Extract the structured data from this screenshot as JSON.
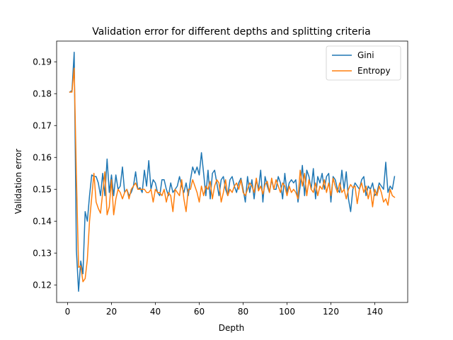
{
  "chart_data": {
    "type": "line",
    "title": "Validation error for different depths and splitting criteria",
    "xlabel": "Depth",
    "ylabel": "Validation error",
    "xlim": [
      -5,
      155
    ],
    "ylim": [
      0.1145,
      0.1965
    ],
    "xticks": [
      0,
      20,
      40,
      60,
      80,
      100,
      120,
      140
    ],
    "yticks": [
      0.12,
      0.13,
      0.14,
      0.15,
      0.16,
      0.17,
      0.18,
      0.19
    ],
    "xtick_labels": [
      "0",
      "20",
      "40",
      "60",
      "80",
      "100",
      "120",
      "140"
    ],
    "ytick_labels": [
      "0.12",
      "0.13",
      "0.14",
      "0.15",
      "0.16",
      "0.17",
      "0.18",
      "0.19"
    ],
    "grid": false,
    "legend_position": "top-right",
    "series": [
      {
        "name": "Gini",
        "color": "#1f77b4",
        "x": [
          1,
          2,
          3,
          4,
          5,
          6,
          7,
          8,
          9,
          10,
          11,
          12,
          13,
          14,
          15,
          16,
          17,
          18,
          19,
          20,
          21,
          22,
          23,
          24,
          25,
          26,
          27,
          28,
          29,
          30,
          31,
          32,
          33,
          34,
          35,
          36,
          37,
          38,
          39,
          40,
          41,
          42,
          43,
          44,
          45,
          46,
          47,
          48,
          49,
          50,
          51,
          52,
          53,
          54,
          55,
          56,
          57,
          58,
          59,
          60,
          61,
          62,
          63,
          64,
          65,
          66,
          67,
          68,
          69,
          70,
          71,
          72,
          73,
          74,
          75,
          76,
          77,
          78,
          79,
          80,
          81,
          82,
          83,
          84,
          85,
          86,
          87,
          88,
          89,
          90,
          91,
          92,
          93,
          94,
          95,
          96,
          97,
          98,
          99,
          100,
          101,
          102,
          103,
          104,
          105,
          106,
          107,
          108,
          109,
          110,
          111,
          112,
          113,
          114,
          115,
          116,
          117,
          118,
          119,
          120,
          121,
          122,
          123,
          124,
          125,
          126,
          127,
          128,
          129,
          130,
          131,
          132,
          133,
          134,
          135,
          136,
          137,
          138,
          139,
          140,
          141,
          142,
          143,
          144,
          145,
          146,
          147,
          148,
          149
        ],
        "values": [
          0.1805,
          0.181,
          0.193,
          0.131,
          0.118,
          0.1275,
          0.1235,
          0.143,
          0.14,
          0.148,
          0.1545,
          0.154,
          0.154,
          0.152,
          0.148,
          0.155,
          0.148,
          0.1595,
          0.149,
          0.1545,
          0.148,
          0.1545,
          0.15,
          0.151,
          0.157,
          0.149,
          0.15,
          0.148,
          0.149,
          0.151,
          0.1555,
          0.15,
          0.1505,
          0.149,
          0.156,
          0.151,
          0.159,
          0.15,
          0.153,
          0.152,
          0.149,
          0.148,
          0.153,
          0.153,
          0.15,
          0.148,
          0.152,
          0.149,
          0.15,
          0.151,
          0.154,
          0.151,
          0.149,
          0.152,
          0.148,
          0.153,
          0.157,
          0.155,
          0.157,
          0.1545,
          0.1615,
          0.155,
          0.148,
          0.156,
          0.147,
          0.155,
          0.156,
          0.152,
          0.148,
          0.153,
          0.154,
          0.15,
          0.148,
          0.153,
          0.154,
          0.151,
          0.149,
          0.152,
          0.1535,
          0.15,
          0.146,
          0.154,
          0.149,
          0.153,
          0.147,
          0.153,
          0.15,
          0.156,
          0.146,
          0.154,
          0.151,
          0.149,
          0.153,
          0.15,
          0.15,
          0.154,
          0.152,
          0.147,
          0.155,
          0.149,
          0.152,
          0.153,
          0.152,
          0.153,
          0.146,
          0.151,
          0.1575,
          0.148,
          0.156,
          0.154,
          0.15,
          0.1565,
          0.147,
          0.154,
          0.152,
          0.155,
          0.15,
          0.154,
          0.155,
          0.146,
          0.154,
          0.153,
          0.15,
          0.149,
          0.156,
          0.15,
          0.1555,
          0.147,
          0.143,
          0.15,
          0.152,
          0.151,
          0.15,
          0.153,
          0.154,
          0.148,
          0.151,
          0.15,
          0.152,
          0.148,
          0.149,
          0.152,
          0.151,
          0.15,
          0.1585,
          0.149,
          0.151,
          0.15,
          0.154
        ]
      },
      {
        "name": "Entropy",
        "color": "#ff7f0e",
        "x": [
          1,
          2,
          3,
          4,
          5,
          6,
          7,
          8,
          9,
          10,
          11,
          12,
          13,
          14,
          15,
          16,
          17,
          18,
          19,
          20,
          21,
          22,
          23,
          24,
          25,
          26,
          27,
          28,
          29,
          30,
          31,
          32,
          33,
          34,
          35,
          36,
          37,
          38,
          39,
          40,
          41,
          42,
          43,
          44,
          45,
          46,
          47,
          48,
          49,
          50,
          51,
          52,
          53,
          54,
          55,
          56,
          57,
          58,
          59,
          60,
          61,
          62,
          63,
          64,
          65,
          66,
          67,
          68,
          69,
          70,
          71,
          72,
          73,
          74,
          75,
          76,
          77,
          78,
          79,
          80,
          81,
          82,
          83,
          84,
          85,
          86,
          87,
          88,
          89,
          90,
          91,
          92,
          93,
          94,
          95,
          96,
          97,
          98,
          99,
          100,
          101,
          102,
          103,
          104,
          105,
          106,
          107,
          108,
          109,
          110,
          111,
          112,
          113,
          114,
          115,
          116,
          117,
          118,
          119,
          120,
          121,
          122,
          123,
          124,
          125,
          126,
          127,
          128,
          129,
          130,
          131,
          132,
          133,
          134,
          135,
          136,
          137,
          138,
          139,
          140,
          141,
          142,
          143,
          144,
          145,
          146,
          147,
          148,
          149
        ],
        "values": [
          0.1805,
          0.1805,
          0.188,
          0.1545,
          0.1255,
          0.126,
          0.121,
          0.122,
          0.128,
          0.14,
          0.1475,
          0.155,
          0.146,
          0.144,
          0.1425,
          0.149,
          0.1555,
          0.142,
          0.1445,
          0.153,
          0.142,
          0.147,
          0.15,
          0.149,
          0.147,
          0.149,
          0.15,
          0.147,
          0.15,
          0.151,
          0.152,
          0.15,
          0.15,
          0.15,
          0.15,
          0.149,
          0.149,
          0.15,
          0.146,
          0.15,
          0.149,
          0.149,
          0.148,
          0.15,
          0.146,
          0.149,
          0.148,
          0.143,
          0.15,
          0.149,
          0.148,
          0.153,
          0.147,
          0.143,
          0.15,
          0.15,
          0.153,
          0.151,
          0.149,
          0.146,
          0.151,
          0.148,
          0.151,
          0.15,
          0.1525,
          0.147,
          0.151,
          0.153,
          0.152,
          0.146,
          0.149,
          0.153,
          0.148,
          0.15,
          0.149,
          0.151,
          0.152,
          0.15,
          0.153,
          0.149,
          0.148,
          0.15,
          0.152,
          0.151,
          0.149,
          0.1535,
          0.1495,
          0.151,
          0.1485,
          0.1515,
          0.1525,
          0.149,
          0.1535,
          0.15,
          0.153,
          0.151,
          0.149,
          0.152,
          0.151,
          0.148,
          0.151,
          0.149,
          0.15,
          0.149,
          0.147,
          0.156,
          0.151,
          0.155,
          0.148,
          0.153,
          0.15,
          0.149,
          0.152,
          0.148,
          0.151,
          0.15,
          0.153,
          0.149,
          0.152,
          0.148,
          0.1535,
          0.151,
          0.149,
          0.152,
          0.149,
          0.15,
          0.147,
          0.15,
          0.1515,
          0.1505,
          0.151,
          0.1455,
          0.15,
          0.152,
          0.149,
          0.151,
          0.147,
          0.15,
          0.1445,
          0.15,
          0.148,
          0.151,
          0.149,
          0.146,
          0.147,
          0.145,
          0.15,
          0.148,
          0.1475
        ]
      }
    ]
  }
}
